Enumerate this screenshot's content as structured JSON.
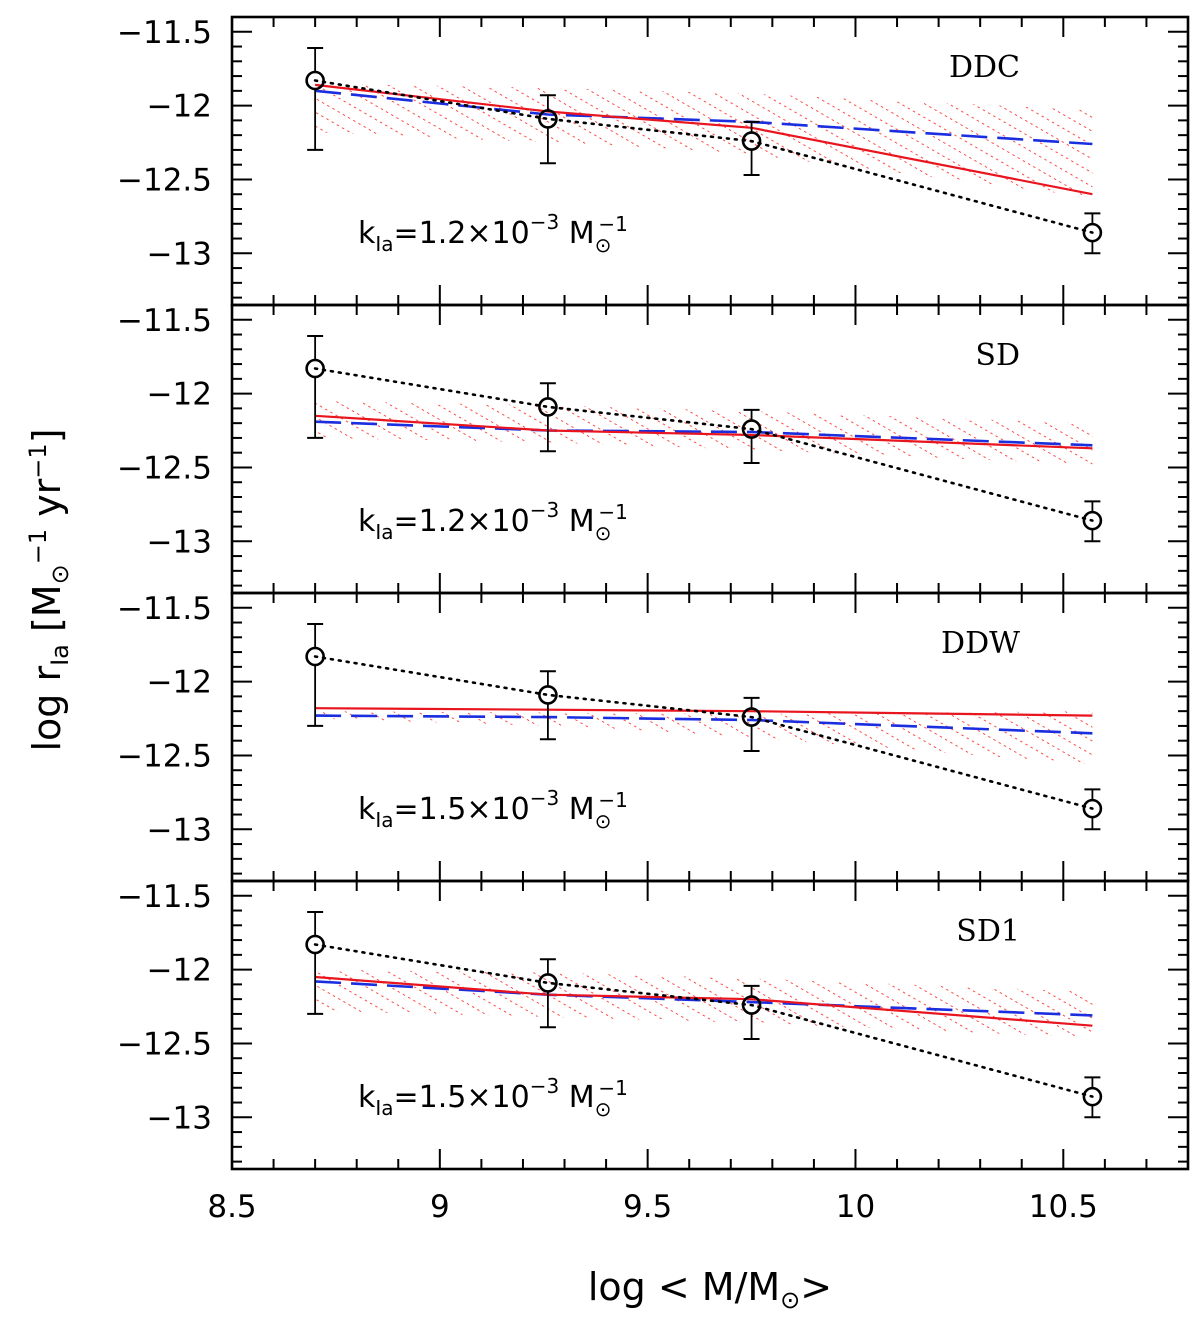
{
  "chart_data": {
    "type": "line",
    "xlabel": {
      "pre": "log < M/M",
      "sub": "⊙",
      "post": ">"
    },
    "ylabel": {
      "a": "log r",
      "b": "Ia",
      "c": " [M",
      "d": "⊙",
      "e": "−1",
      "f": " yr",
      "g": "−1",
      "h": "]"
    },
    "xlim": [
      8.5,
      10.8
    ],
    "ylim": [
      -13.35,
      -11.4
    ],
    "xticks": [
      8.5,
      9,
      9.5,
      10,
      10.5
    ],
    "xtick_labels": [
      "8.5",
      "9",
      "9.5",
      "10",
      "10.5"
    ],
    "yticks": [
      -11.5,
      -12,
      -12.5,
      -13
    ],
    "ytick_labels": [
      "−11.5",
      "−12",
      "−12.5",
      "−13"
    ],
    "grid": false,
    "observed": {
      "x": [
        8.7,
        9.26,
        9.75,
        10.57
      ],
      "y": [
        -11.83,
        -12.09,
        -12.24,
        -12.86
      ],
      "err": [
        [
          0.47,
          0.22
        ],
        [
          0.3,
          0.16
        ],
        [
          0.23,
          0.13
        ],
        [
          0.14,
          0.13
        ]
      ]
    },
    "panels": [
      {
        "label": "DDC",
        "k": {
          "pre": "k",
          "sub": "Ia",
          "mid": "=1.2×10",
          "sup": "−3",
          "unit": " M",
          "unitsub": "⊙",
          "unitsup": "−1"
        },
        "solid": {
          "x": [
            8.7,
            9.26,
            9.75,
            10.57
          ],
          "y": [
            -11.86,
            -12.04,
            -12.15,
            -12.6
          ]
        },
        "dashed": {
          "x": [
            8.7,
            9.26,
            9.75,
            10.57
          ],
          "y": [
            -11.9,
            -12.06,
            -12.11,
            -12.26
          ]
        },
        "band": {
          "x": [
            8.7,
            9.26,
            9.75,
            10.57
          ],
          "upper": [
            -11.85,
            -11.88,
            -11.92,
            -12.03
          ],
          "lower": [
            -12.18,
            -12.25,
            -12.33,
            -12.62
          ]
        }
      },
      {
        "label": "SD",
        "k": {
          "pre": "k",
          "sub": "Ia",
          "mid": "=1.2×10",
          "sup": "−3",
          "unit": " M",
          "unitsub": "⊙",
          "unitsup": "−1"
        },
        "solid": {
          "x": [
            8.7,
            9.26,
            9.75,
            10.57
          ],
          "y": [
            -12.15,
            -12.25,
            -12.28,
            -12.37
          ]
        },
        "dashed": {
          "x": [
            8.7,
            9.26,
            9.75,
            10.57
          ],
          "y": [
            -12.19,
            -12.25,
            -12.26,
            -12.35
          ]
        },
        "band": {
          "x": [
            8.7,
            9.26,
            9.75,
            10.57
          ],
          "upper": [
            -12.05,
            -12.08,
            -12.12,
            -12.2
          ],
          "lower": [
            -12.3,
            -12.33,
            -12.38,
            -12.48
          ]
        }
      },
      {
        "label": "DDW",
        "k": {
          "pre": "k",
          "sub": "Ia",
          "mid": "=1.5×10",
          "sup": "−3",
          "unit": " M",
          "unitsub": "⊙",
          "unitsup": "−1"
        },
        "solid": {
          "x": [
            8.7,
            9.26,
            9.75,
            10.57
          ],
          "y": [
            -12.18,
            -12.19,
            -12.2,
            -12.23
          ]
        },
        "dashed": {
          "x": [
            8.7,
            9.26,
            9.75,
            10.57
          ],
          "y": [
            -12.23,
            -12.24,
            -12.26,
            -12.35
          ]
        },
        "band": {
          "x": [
            8.7,
            9.26,
            9.75,
            10.57
          ],
          "upper": [
            -12.2,
            -12.21,
            -12.22,
            -12.2
          ],
          "lower": [
            -12.25,
            -12.3,
            -12.38,
            -12.56
          ]
        }
      },
      {
        "label": "SD1",
        "k": {
          "pre": "k",
          "sub": "Ia",
          "mid": "=1.5×10",
          "sup": "−3",
          "unit": " M",
          "unitsub": "⊙",
          "unitsup": "−1"
        },
        "solid": {
          "x": [
            8.7,
            9.26,
            9.75,
            10.57
          ],
          "y": [
            -12.05,
            -12.17,
            -12.2,
            -12.38
          ]
        },
        "dashed": {
          "x": [
            8.7,
            9.26,
            9.75,
            10.57
          ],
          "y": [
            -12.08,
            -12.17,
            -12.22,
            -12.31
          ]
        },
        "band": {
          "x": [
            8.7,
            9.26,
            9.75,
            10.57
          ],
          "upper": [
            -12.0,
            -12.02,
            -12.06,
            -12.15
          ],
          "lower": [
            -12.28,
            -12.32,
            -12.36,
            -12.46
          ]
        }
      }
    ],
    "colors": {
      "solid": "#e8141e",
      "dashed": "#1a2ee0",
      "band": "#ff2020",
      "observed": "#000000"
    }
  }
}
